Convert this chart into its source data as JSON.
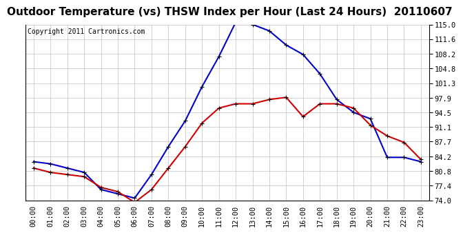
{
  "title": "Outdoor Temperature (vs) THSW Index per Hour (Last 24 Hours)  20110607",
  "copyright": "Copyright 2011 Cartronics.com",
  "hours": [
    "00:00",
    "01:00",
    "02:00",
    "03:00",
    "04:00",
    "05:00",
    "06:00",
    "07:00",
    "08:00",
    "09:00",
    "10:00",
    "11:00",
    "12:00",
    "13:00",
    "14:00",
    "15:00",
    "16:00",
    "17:00",
    "18:00",
    "19:00",
    "20:00",
    "21:00",
    "22:00",
    "23:00"
  ],
  "thsw": [
    83.0,
    82.5,
    81.5,
    80.5,
    76.5,
    75.5,
    74.5,
    80.0,
    86.5,
    92.5,
    100.5,
    107.5,
    115.5,
    115.0,
    113.5,
    110.2,
    108.0,
    103.5,
    97.5,
    94.5,
    93.0,
    84.0,
    84.0,
    83.0
  ],
  "temp": [
    81.5,
    80.5,
    80.0,
    79.5,
    77.0,
    76.0,
    73.5,
    76.5,
    81.5,
    86.5,
    92.0,
    95.5,
    96.5,
    96.5,
    97.5,
    98.0,
    93.5,
    96.5,
    96.5,
    95.5,
    91.5,
    89.0,
    87.5,
    83.5
  ],
  "thsw_color": "#0000cc",
  "temp_color": "#cc0000",
  "bg_color": "#ffffff",
  "grid_color": "#b0b0b0",
  "ylim": [
    74.0,
    115.0
  ],
  "yticks": [
    74.0,
    77.4,
    80.8,
    84.2,
    87.7,
    91.1,
    94.5,
    97.9,
    101.3,
    104.8,
    108.2,
    111.6,
    115.0
  ],
  "title_fontsize": 11,
  "copyright_fontsize": 7,
  "tick_fontsize": 7.5,
  "markersize": 5,
  "linewidth": 1.5
}
